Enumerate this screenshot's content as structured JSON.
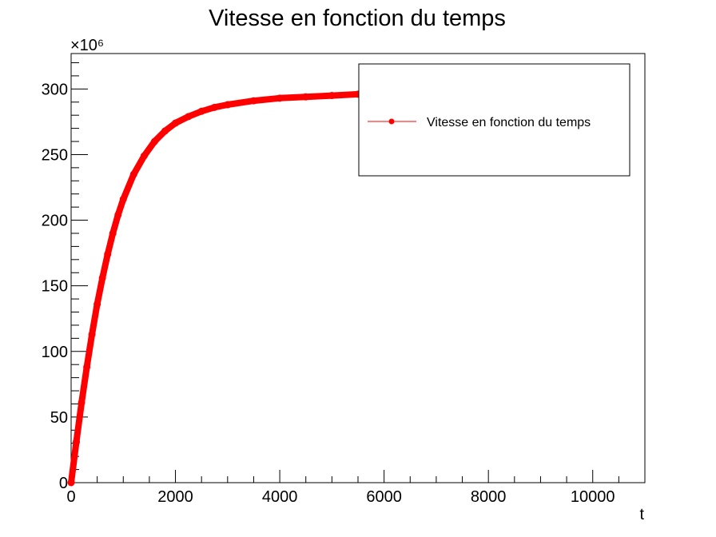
{
  "chart_data": {
    "type": "line",
    "title": "Vitesse en fonction du temps",
    "xlabel": "t",
    "ylabel": "",
    "y_multiplier": "×10⁶",
    "xlim": [
      0,
      11000
    ],
    "ylim": [
      0,
      327
    ],
    "x_ticks": [
      {
        "value": 0,
        "label": "0"
      },
      {
        "value": 2000,
        "label": "2000"
      },
      {
        "value": 4000,
        "label": "4000"
      },
      {
        "value": 6000,
        "label": "6000"
      },
      {
        "value": 8000,
        "label": "8000"
      },
      {
        "value": 10000,
        "label": "10000"
      }
    ],
    "y_ticks": [
      {
        "value": 0,
        "label": "0"
      },
      {
        "value": 50,
        "label": "50"
      },
      {
        "value": 100,
        "label": "100"
      },
      {
        "value": 150,
        "label": "150"
      },
      {
        "value": 200,
        "label": "200"
      },
      {
        "value": 250,
        "label": "250"
      },
      {
        "value": 300,
        "label": "300"
      }
    ],
    "grid": false,
    "legend": {
      "position": "top-right",
      "entries": [
        "Vitesse en fonction du temps"
      ]
    },
    "series": [
      {
        "name": "Vitesse en fonction du temps",
        "color": "#ff0000",
        "x": [
          0,
          100,
          200,
          300,
          400,
          500,
          600,
          700,
          800,
          900,
          1000,
          1200,
          1400,
          1600,
          1800,
          2000,
          2250,
          2500,
          2750,
          3000,
          3500,
          4000,
          4500,
          5000,
          5500
        ],
        "y": [
          0,
          31,
          61,
          88,
          113,
          136,
          156,
          174,
          190,
          204,
          216,
          235,
          249,
          260,
          268,
          274,
          279,
          283,
          286,
          288,
          291,
          293,
          294,
          295,
          296
        ]
      }
    ]
  }
}
